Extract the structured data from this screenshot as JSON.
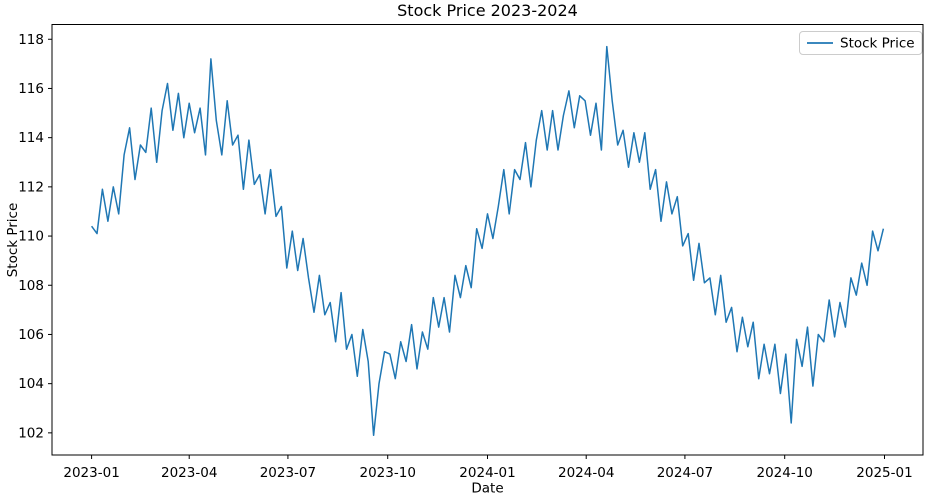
{
  "chart_data": {
    "type": "line",
    "title": "Stock Price 2023-2024",
    "xlabel": "Date",
    "ylabel": "Stock Price",
    "grid": false,
    "background": "#ffffff",
    "spine_color": "#000000",
    "legend": {
      "position": "upper right",
      "entries": [
        {
          "label": "Stock Price",
          "color": "#1f77b4"
        }
      ]
    },
    "axis": {
      "x_unit": "days since 2023-01-01",
      "xlim_days": [
        -36.5,
        766.5
      ],
      "ylim": [
        101.1,
        118.6
      ],
      "x_ticks": {
        "days": [
          0,
          90,
          181,
          273,
          365,
          456,
          547,
          639,
          731
        ],
        "labels": [
          "2023-01",
          "2023-04",
          "2023-07",
          "2023-10",
          "2024-01",
          "2024-04",
          "2024-07",
          "2024-10",
          "2025-01"
        ]
      },
      "y_ticks": [
        102,
        104,
        106,
        108,
        110,
        112,
        114,
        116,
        118
      ]
    },
    "series": [
      {
        "name": "Stock Price",
        "color": "#1f77b4",
        "line_width": 1.5,
        "x_start_day": 0,
        "x_step_days": 5,
        "values": [
          110.4,
          110.1,
          111.9,
          110.6,
          112.0,
          110.9,
          113.3,
          114.4,
          112.3,
          113.7,
          113.4,
          115.2,
          113.0,
          115.1,
          116.2,
          114.3,
          115.8,
          114.0,
          115.4,
          114.2,
          115.2,
          113.3,
          117.2,
          114.7,
          113.3,
          115.5,
          113.7,
          114.1,
          111.9,
          113.9,
          112.1,
          112.5,
          110.9,
          112.7,
          110.8,
          111.2,
          108.7,
          110.2,
          108.6,
          109.9,
          108.3,
          106.9,
          108.4,
          106.8,
          107.3,
          105.7,
          107.7,
          105.4,
          106.0,
          104.3,
          106.2,
          104.9,
          101.9,
          104.0,
          105.3,
          105.2,
          104.2,
          105.7,
          104.9,
          106.4,
          104.6,
          106.1,
          105.4,
          107.5,
          106.3,
          107.5,
          106.1,
          108.4,
          107.5,
          108.8,
          107.9,
          110.3,
          109.5,
          110.9,
          109.9,
          111.2,
          112.7,
          110.9,
          112.7,
          112.3,
          113.8,
          112.0,
          113.9,
          115.1,
          113.5,
          115.1,
          113.5,
          114.9,
          115.9,
          114.4,
          115.7,
          115.5,
          114.1,
          115.4,
          113.5,
          117.7,
          115.5,
          113.7,
          114.3,
          112.8,
          114.2,
          113.0,
          114.2,
          111.9,
          112.7,
          110.6,
          112.2,
          110.9,
          111.6,
          109.6,
          110.1,
          108.2,
          109.7,
          108.1,
          108.3,
          106.8,
          108.4,
          106.5,
          107.1,
          105.3,
          106.7,
          105.5,
          106.5,
          104.2,
          105.6,
          104.4,
          105.6,
          103.6,
          105.2,
          102.4,
          105.8,
          104.7,
          106.3,
          103.9,
          106.0,
          105.7,
          107.4,
          105.9,
          107.3,
          106.3,
          108.3,
          107.6,
          108.9,
          108.0,
          110.2,
          109.4,
          110.3
        ]
      }
    ]
  }
}
